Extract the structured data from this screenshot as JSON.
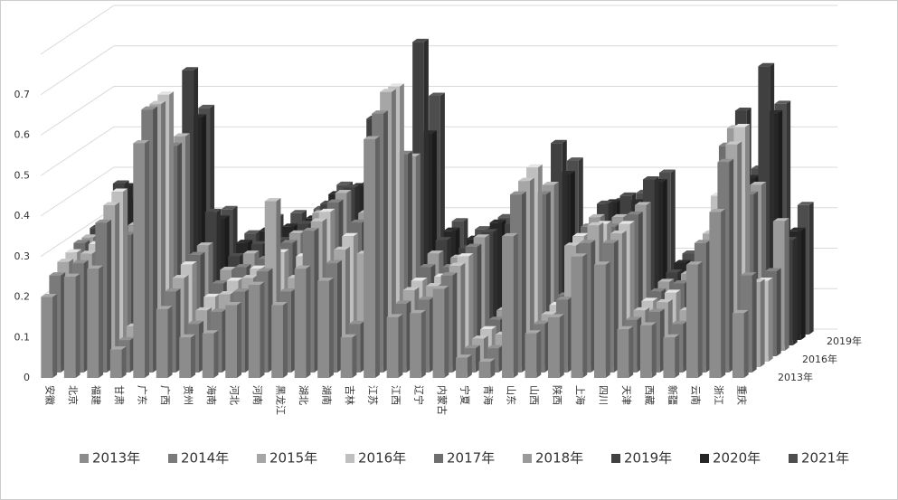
{
  "chart_data": {
    "type": "bar3d",
    "categories": [
      "安徽",
      "北京",
      "福建",
      "甘肃",
      "广东",
      "广西",
      "贵州",
      "海南",
      "河北",
      "河南",
      "黑龙江",
      "湖北",
      "湖南",
      "吉林",
      "江苏",
      "江西",
      "辽宁",
      "内蒙古",
      "宁夏",
      "青海",
      "山东",
      "山西",
      "陕西",
      "上海",
      "四川",
      "天津",
      "西藏",
      "新疆",
      "云南",
      "浙江",
      "重庆"
    ],
    "ylim": [
      0,
      0.8
    ],
    "yticks": [
      0,
      0.1,
      0.2,
      0.3,
      0.4,
      0.5,
      0.6,
      0.7
    ],
    "grid": true,
    "legend": "bottom",
    "series": [
      {
        "name": "2013年",
        "color": "#8c8c8c",
        "values": [
          0.2,
          0.25,
          0.27,
          0.07,
          0.58,
          0.17,
          0.1,
          0.11,
          0.18,
          0.23,
          0.18,
          0.27,
          0.24,
          0.1,
          0.59,
          0.15,
          0.16,
          0.22,
          0.05,
          0.04,
          0.35,
          0.11,
          0.15,
          0.3,
          0.28,
          0.12,
          0.13,
          0.1,
          0.28,
          0.41,
          0.16
        ]
      },
      {
        "name": "2014年",
        "color": "#7a7a7a",
        "values": [
          0.24,
          0.27,
          0.37,
          0.08,
          0.65,
          0.2,
          0.12,
          0.15,
          0.2,
          0.25,
          0.2,
          0.35,
          0.27,
          0.12,
          0.64,
          0.17,
          0.18,
          0.24,
          0.06,
          0.06,
          0.44,
          0.12,
          0.18,
          0.32,
          0.32,
          0.13,
          0.15,
          0.12,
          0.32,
          0.52,
          0.24
        ]
      },
      {
        "name": "2015年",
        "color": "#a6a6a6",
        "values": [
          0.26,
          0.28,
          0.4,
          0.1,
          0.65,
          0.22,
          0.14,
          0.18,
          0.22,
          0.41,
          0.22,
          0.36,
          0.29,
          0.28,
          0.68,
          0.19,
          0.2,
          0.25,
          0.07,
          0.08,
          0.46,
          0.13,
          0.3,
          0.35,
          0.33,
          0.14,
          0.16,
          0.14,
          0.33,
          0.55,
          0.21
        ]
      },
      {
        "name": "2016年",
        "color": "#bfbfbf",
        "values": [
          0.27,
          0.29,
          0.42,
          0.12,
          0.66,
          0.24,
          0.16,
          0.2,
          0.23,
          0.27,
          0.26,
          0.37,
          0.31,
          0.33,
          0.68,
          0.2,
          0.21,
          0.26,
          0.08,
          0.1,
          0.48,
          0.14,
          0.31,
          0.34,
          0.34,
          0.15,
          0.17,
          0.16,
          0.41,
          0.58,
          0.2
        ]
      },
      {
        "name": "2017年",
        "color": "#6e6e6e",
        "values": [
          0.28,
          0.3,
          0.3,
          0.14,
          0.52,
          0.25,
          0.18,
          0.22,
          0.24,
          0.28,
          0.3,
          0.38,
          0.33,
          0.32,
          0.5,
          0.22,
          0.22,
          0.27,
          0.09,
          0.12,
          0.4,
          0.15,
          0.32,
          0.32,
          0.35,
          0.16,
          0.18,
          0.17,
          0.52,
          0.4,
          0.21
        ]
      },
      {
        "name": "2018年",
        "color": "#9a9a9a",
        "values": [
          0.28,
          0.3,
          0.31,
          0.15,
          0.53,
          0.26,
          0.2,
          0.24,
          0.25,
          0.29,
          0.34,
          0.39,
          0.34,
          0.3,
          0.48,
          0.24,
          0.23,
          0.28,
          0.1,
          0.14,
          0.41,
          0.16,
          0.33,
          0.33,
          0.36,
          0.17,
          0.19,
          0.18,
          0.55,
          0.41,
          0.32
        ]
      },
      {
        "name": "2019年",
        "color": "#404040",
        "values": [
          0.29,
          0.4,
          0.32,
          0.16,
          0.68,
          0.33,
          0.22,
          0.25,
          0.26,
          0.3,
          0.35,
          0.39,
          0.56,
          0.31,
          0.75,
          0.26,
          0.24,
          0.28,
          0.3,
          0.16,
          0.5,
          0.17,
          0.35,
          0.37,
          0.41,
          0.18,
          0.2,
          0.19,
          0.58,
          0.69,
          0.26
        ]
      },
      {
        "name": "2020年",
        "color": "#262626",
        "values": [
          0.29,
          0.38,
          0.33,
          0.17,
          0.55,
          0.3,
          0.24,
          0.27,
          0.28,
          0.3,
          0.36,
          0.38,
          0.41,
          0.32,
          0.51,
          0.27,
          0.25,
          0.29,
          0.31,
          0.18,
          0.41,
          0.18,
          0.34,
          0.34,
          0.39,
          0.19,
          0.2,
          0.2,
          0.4,
          0.56,
          0.27
        ]
      },
      {
        "name": "2021年",
        "color": "#4d4d4d",
        "values": [
          0.3,
          0.33,
          0.33,
          0.18,
          0.56,
          0.31,
          0.25,
          0.29,
          0.3,
          0.31,
          0.37,
          0.37,
          0.43,
          0.33,
          0.59,
          0.28,
          0.26,
          0.29,
          0.32,
          0.2,
          0.43,
          0.19,
          0.33,
          0.35,
          0.4,
          0.2,
          0.21,
          0.21,
          0.41,
          0.57,
          0.32
        ]
      }
    ]
  }
}
